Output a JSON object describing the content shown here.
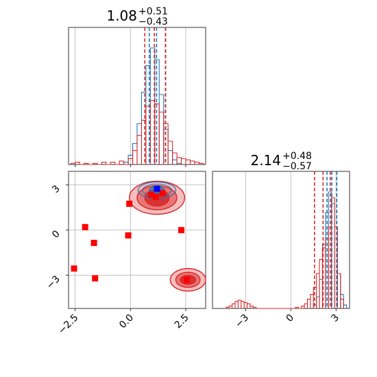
{
  "chart_data": [
    {
      "type": "histogram",
      "panel": "marginal-x",
      "title": {
        "main": "1.08",
        "sup": "+0.51",
        "sub": "−0.43"
      },
      "xlim": [
        -2.8,
        3.4
      ],
      "grid": true,
      "series": [
        {
          "color": "#1f77b4",
          "bin_width": 0.2,
          "bins_x": [
            -0.2,
            0.0,
            0.2,
            0.4,
            0.6,
            0.8,
            1.0,
            1.2,
            1.4,
            1.6,
            1.8,
            2.0,
            2.2
          ],
          "counts": [
            0.02,
            0.08,
            0.18,
            0.35,
            0.62,
            0.85,
            1.0,
            0.9,
            0.6,
            0.3,
            0.12,
            0.04,
            0.01
          ],
          "quantile_lines": [
            0.85,
            1.18,
            1.58
          ]
        },
        {
          "color": "#d62728",
          "bin_width": 0.2,
          "bins_x": [
            -2.6,
            -2.4,
            -2.0,
            -1.6,
            -1.2,
            -0.8,
            -0.4,
            0.0,
            0.2,
            0.4,
            0.6,
            0.8,
            1.0,
            1.2,
            1.4,
            1.6,
            1.8,
            2.0,
            2.2,
            2.4,
            2.6,
            2.8,
            3.0,
            3.2
          ],
          "counts": [
            0.01,
            0.02,
            0.01,
            0.01,
            0.02,
            0.02,
            0.03,
            0.05,
            0.12,
            0.25,
            0.38,
            0.5,
            0.55,
            0.52,
            0.45,
            0.35,
            0.2,
            0.1,
            0.06,
            0.05,
            0.04,
            0.03,
            0.02,
            0.01
          ],
          "quantile_lines": [
            0.65,
            1.08,
            1.59
          ]
        }
      ]
    },
    {
      "type": "scatter",
      "panel": "joint",
      "xlim": [
        -2.8,
        3.4
      ],
      "ylim": [
        -5.2,
        3.9
      ],
      "xticks": [
        "−2.5",
        "0.0",
        "2.5"
      ],
      "xtick_values": [
        -2.5,
        0.0,
        2.5
      ],
      "yticks": [
        "3",
        "0",
        "−3"
      ],
      "ytick_values": [
        3,
        0,
        -3
      ],
      "grid": true,
      "truth_points": [
        {
          "x": -2.05,
          "y": 0.2
        },
        {
          "x": -1.65,
          "y": -0.85
        },
        {
          "x": -0.1,
          "y": -0.35
        },
        {
          "x": -2.55,
          "y": -2.55
        },
        {
          "x": -1.6,
          "y": -3.2
        },
        {
          "x": -0.05,
          "y": 1.75
        },
        {
          "x": 0.95,
          "y": 2.35
        },
        {
          "x": 1.15,
          "y": 2.2
        },
        {
          "x": 1.45,
          "y": 2.45
        },
        {
          "x": 2.3,
          "y": 0.0
        },
        {
          "x": 2.55,
          "y": -3.3
        }
      ],
      "median_point": {
        "x": 1.2,
        "y": 2.75
      },
      "red_contours": [
        {
          "cx": 1.2,
          "cy": 2.15,
          "rx": [
            0.55,
            0.9,
            1.25
          ],
          "ry": [
            0.55,
            0.8,
            1.1
          ]
        },
        {
          "cx": 2.6,
          "cy": -3.3,
          "rx": [
            0.35,
            0.55,
            0.8
          ],
          "ry": [
            0.3,
            0.5,
            0.75
          ]
        }
      ],
      "blue_contours": [
        {
          "cx": 1.2,
          "cy": 2.65,
          "rx": [
            0.35,
            0.65,
            0.85
          ],
          "ry": [
            0.25,
            0.4,
            0.55
          ]
        }
      ]
    },
    {
      "type": "histogram",
      "panel": "marginal-y",
      "title": {
        "main": "2.14",
        "sup": "+0.48",
        "sub": "−0.57"
      },
      "xlim": [
        -5.2,
        3.9
      ],
      "xticks": [
        "−3",
        "0",
        "3"
      ],
      "xtick_values": [
        -3,
        0,
        3
      ],
      "grid": true,
      "series": [
        {
          "color": "#1f77b4",
          "bin_width": 0.2,
          "bins_x": [
            1.6,
            1.8,
            2.0,
            2.2,
            2.4,
            2.6,
            2.8,
            3.0,
            3.2,
            3.4,
            3.6
          ],
          "counts": [
            0.03,
            0.1,
            0.25,
            0.55,
            0.82,
            1.0,
            0.9,
            0.6,
            0.3,
            0.12,
            0.03
          ],
          "quantile_lines": [
            2.4,
            2.72,
            3.05
          ]
        },
        {
          "color": "#d62728",
          "bin_width": 0.2,
          "bins_x": [
            -4.2,
            -4.0,
            -3.8,
            -3.6,
            -3.4,
            -3.2,
            -3.0,
            -2.8,
            -2.6,
            -2.4,
            0.4,
            0.8,
            1.0,
            1.2,
            1.4,
            1.6,
            1.8,
            2.0,
            2.2,
            2.4,
            2.6,
            2.8,
            3.0,
            3.2,
            3.4
          ],
          "counts": [
            0.01,
            0.02,
            0.04,
            0.06,
            0.07,
            0.06,
            0.05,
            0.04,
            0.02,
            0.01,
            0.01,
            0.02,
            0.04,
            0.08,
            0.12,
            0.18,
            0.3,
            0.42,
            0.52,
            0.6,
            0.7,
            0.95,
            0.7,
            0.3,
            0.08
          ],
          "quantile_lines": [
            1.57,
            2.14,
            2.62
          ]
        }
      ]
    }
  ]
}
